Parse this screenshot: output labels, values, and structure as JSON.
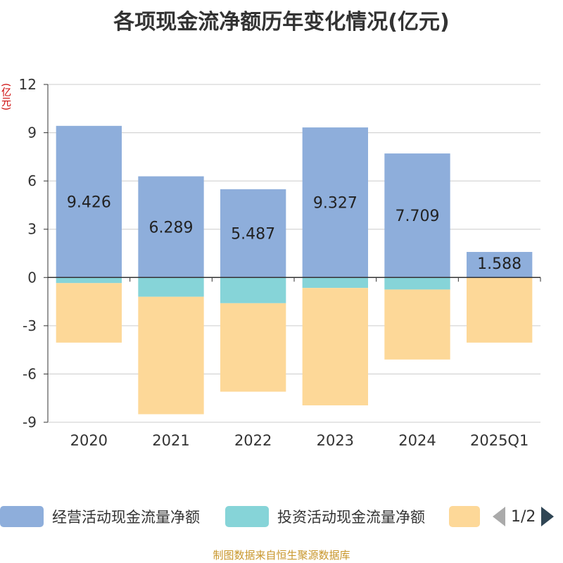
{
  "title": "各项现金流净额历年变化情况(亿元)",
  "unit_label": "(亿元)",
  "source": "制图数据来自恒生聚源数据库",
  "pager": {
    "text": "1/2"
  },
  "colors": {
    "operating": "#8eaedb",
    "investing": "#86d4d8",
    "financing": "#fdd898",
    "grid": "#cccccc",
    "axis": "#333333",
    "label_text": "#222222"
  },
  "legend": [
    {
      "name": "经营活动现金流量净额",
      "color": "#8eaedb"
    },
    {
      "name": "投资活动现金流量净额",
      "color": "#86d4d8"
    },
    {
      "name": "",
      "color": "#fdd898"
    }
  ],
  "chart_data": {
    "type": "bar",
    "stacked": true,
    "title": "各项现金流净额历年变化情况(亿元)",
    "ylabel": "(亿元)",
    "ylim": [
      -9,
      12
    ],
    "yticks": [
      12,
      9,
      6,
      3,
      0,
      -3,
      -6,
      -9
    ],
    "grid": true,
    "legend_position": "bottom",
    "categories": [
      "2020",
      "2021",
      "2022",
      "2023",
      "2024",
      "2025Q1"
    ],
    "series": [
      {
        "name": "经营活动现金流量净额",
        "color": "#8eaedb",
        "values": [
          9.426,
          6.289,
          5.487,
          9.327,
          7.709,
          1.588
        ],
        "labels": [
          "9.426",
          "6.289",
          "5.487",
          "9.327",
          "7.709",
          "1.588"
        ]
      },
      {
        "name": "投资活动现金流量净额",
        "color": "#86d4d8",
        "values": [
          -0.35,
          -1.2,
          -1.6,
          -0.65,
          -0.75,
          0
        ]
      },
      {
        "color": "#fdd898",
        "values": [
          -3.7,
          -7.3,
          -5.5,
          -7.3,
          -4.35,
          -4.05
        ]
      }
    ]
  }
}
